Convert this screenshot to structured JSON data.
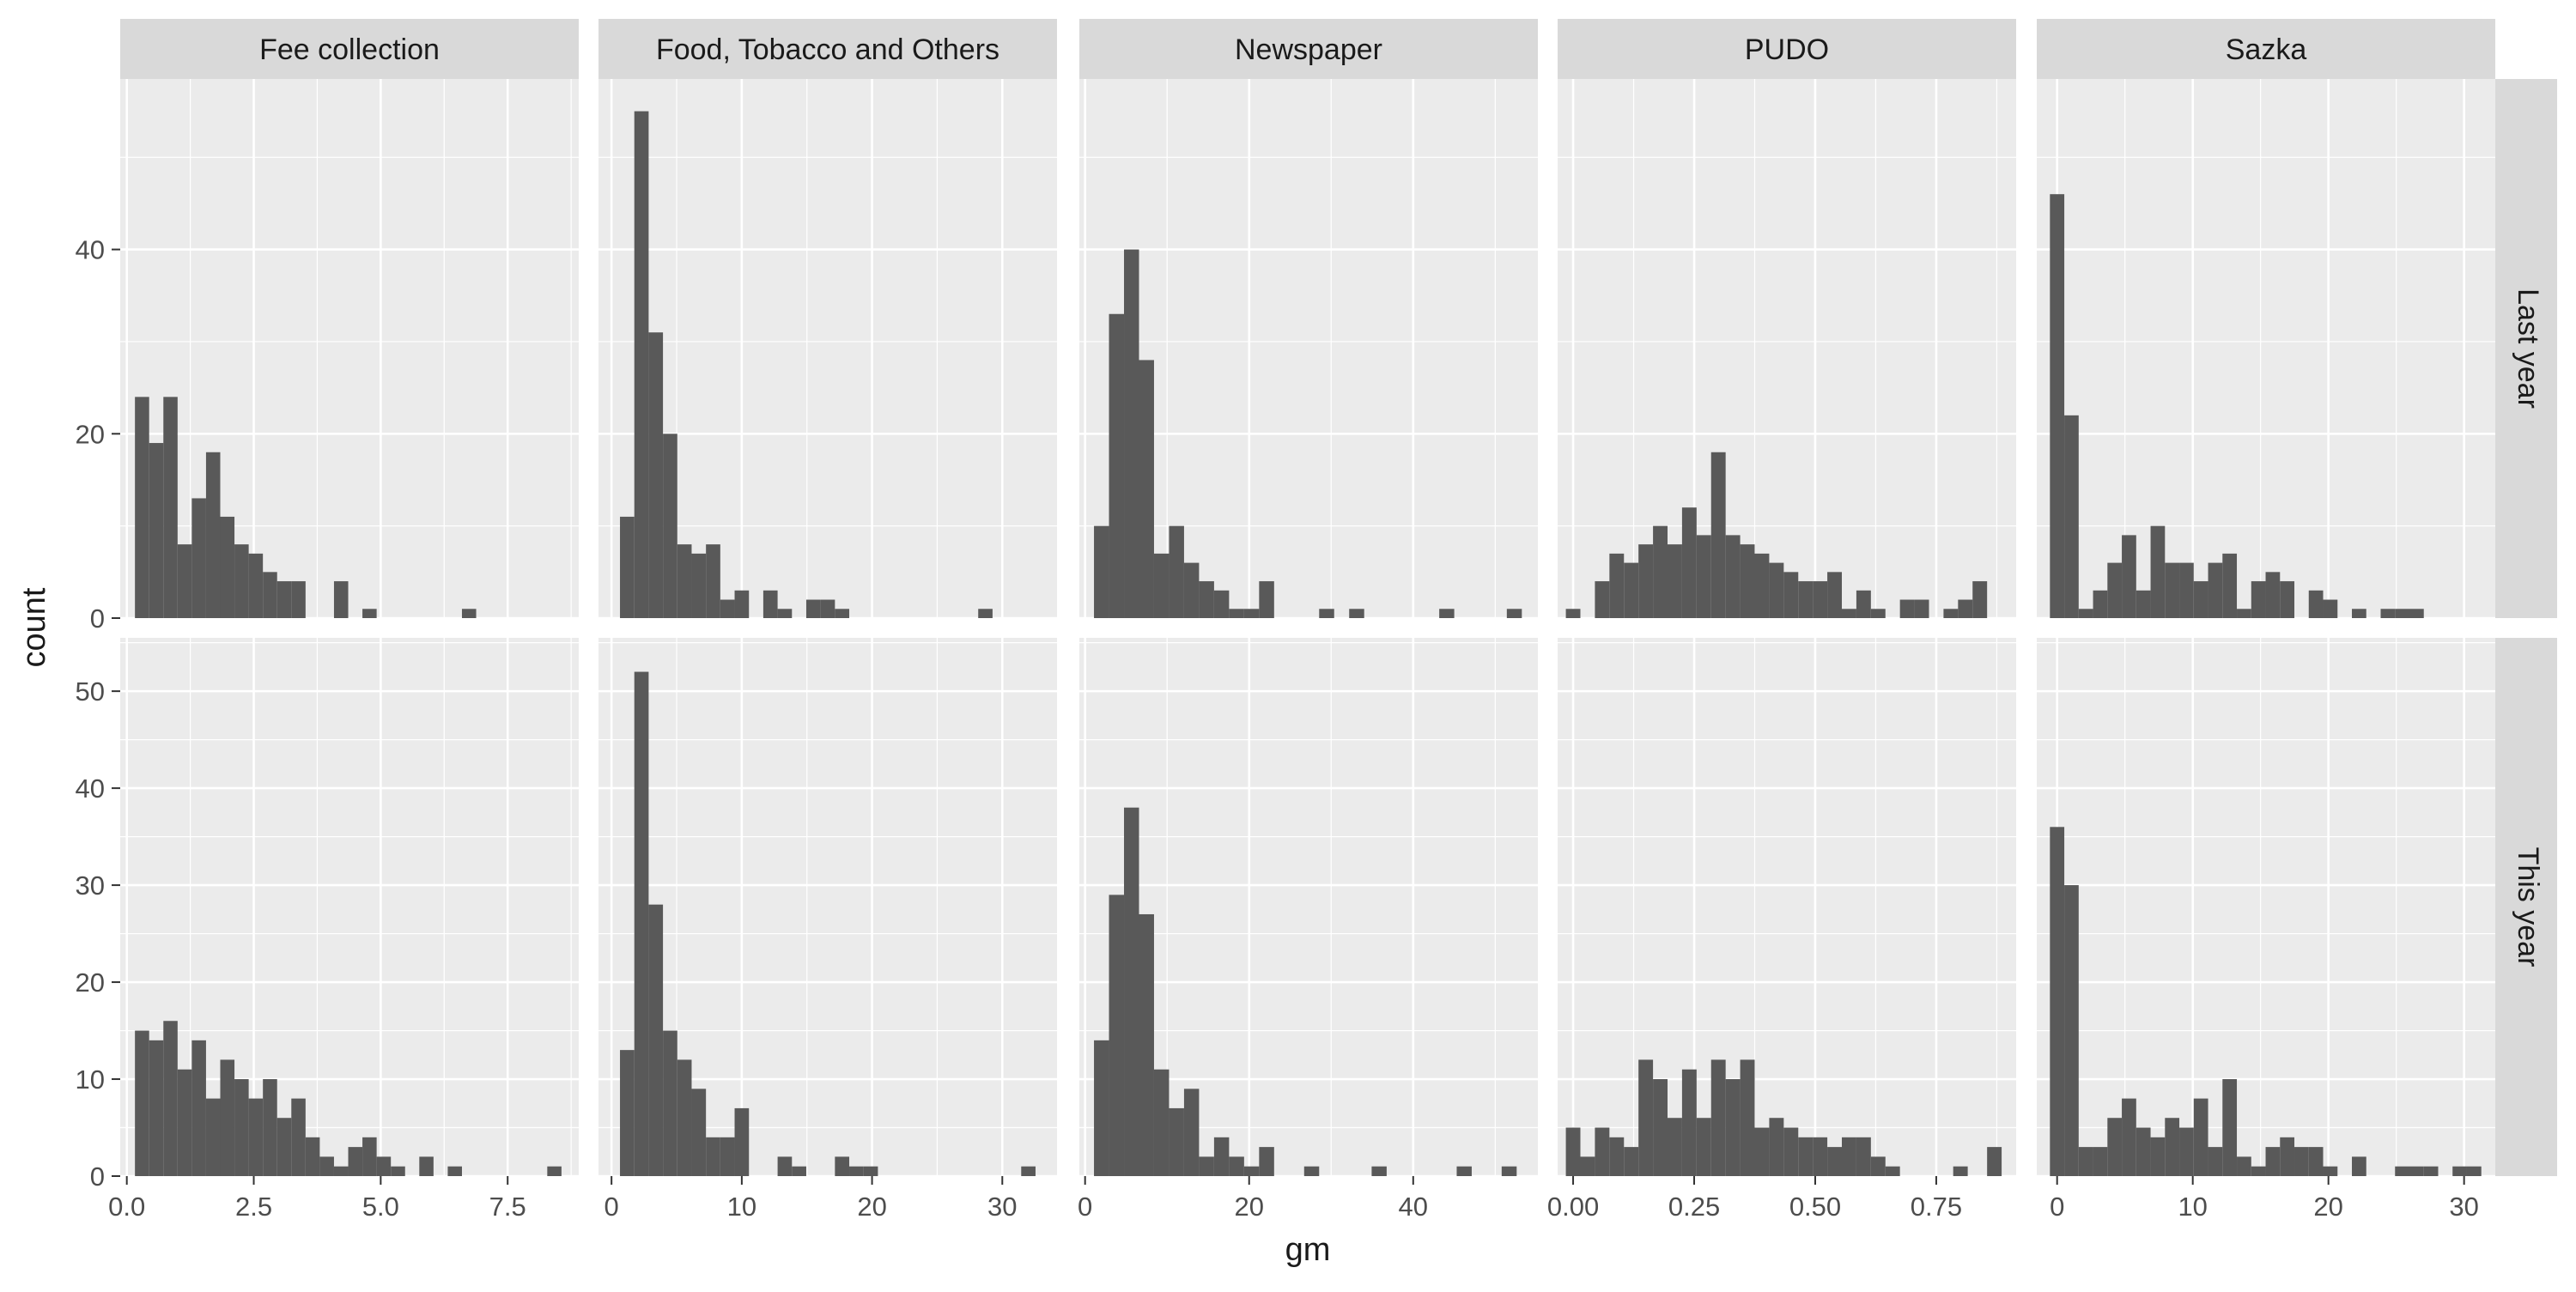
{
  "chart_data": {
    "type": "histogram",
    "facet_columns": [
      "Fee collection",
      "Food, Tobacco and Others",
      "Newspaper",
      "PUDO",
      "Sazka"
    ],
    "facet_rows": [
      "Last year",
      "This year"
    ],
    "xlabel": "gm",
    "ylabel": "count",
    "colors": {
      "panel_bg": "#EBEBEB",
      "grid": "#FFFFFF",
      "bar": "#595959",
      "strip_bg": "#D9D9D9",
      "text": "#1A1A1A",
      "tick_text": "#4D4D4D"
    },
    "row_ylim": [
      [
        0,
        58.5
      ],
      [
        0,
        55.5
      ]
    ],
    "row_yticks": [
      [
        0,
        20,
        40
      ],
      [
        0,
        10,
        20,
        30,
        40,
        50
      ]
    ],
    "columns": [
      {
        "name": "Fee collection",
        "xlim": [
          -0.13,
          8.9
        ],
        "xticks": [
          0,
          2.5,
          5,
          7.5
        ],
        "xtick_labels": [
          "0.0",
          "2.5",
          "5.0",
          "7.5"
        ],
        "binwidth": 0.28,
        "rows": [
          {
            "bins": [
              [
                0.3,
                24
              ],
              [
                0.58,
                19
              ],
              [
                0.86,
                24
              ],
              [
                1.14,
                8
              ],
              [
                1.42,
                13
              ],
              [
                1.7,
                18
              ],
              [
                1.98,
                11
              ],
              [
                2.26,
                8
              ],
              [
                2.54,
                7
              ],
              [
                2.82,
                5
              ],
              [
                3.1,
                4
              ],
              [
                3.38,
                4
              ],
              [
                4.22,
                4
              ],
              [
                4.78,
                1
              ],
              [
                6.74,
                1
              ]
            ]
          },
          {
            "bins": [
              [
                0.3,
                15
              ],
              [
                0.58,
                14
              ],
              [
                0.86,
                16
              ],
              [
                1.14,
                11
              ],
              [
                1.42,
                14
              ],
              [
                1.7,
                8
              ],
              [
                1.98,
                12
              ],
              [
                2.26,
                10
              ],
              [
                2.54,
                8
              ],
              [
                2.82,
                10
              ],
              [
                3.1,
                6
              ],
              [
                3.38,
                8
              ],
              [
                3.66,
                4
              ],
              [
                3.94,
                2
              ],
              [
                4.22,
                1
              ],
              [
                4.5,
                3
              ],
              [
                4.78,
                4
              ],
              [
                5.06,
                2
              ],
              [
                5.34,
                1
              ],
              [
                5.9,
                2
              ],
              [
                6.46,
                1
              ],
              [
                8.42,
                1
              ]
            ]
          }
        ]
      },
      {
        "name": "Food, Tobacco and Others",
        "xlim": [
          -1.0,
          34.2
        ],
        "xticks": [
          0,
          10,
          20,
          30
        ],
        "xtick_labels": [
          "0",
          "10",
          "20",
          "30"
        ],
        "binwidth": 1.1,
        "rows": [
          {
            "bins": [
              [
                1.2,
                11
              ],
              [
                2.3,
                55
              ],
              [
                3.4,
                31
              ],
              [
                4.5,
                20
              ],
              [
                5.6,
                8
              ],
              [
                6.7,
                7
              ],
              [
                7.8,
                8
              ],
              [
                8.9,
                2
              ],
              [
                10.0,
                3
              ],
              [
                12.2,
                3
              ],
              [
                13.3,
                1
              ],
              [
                15.5,
                2
              ],
              [
                16.6,
                2
              ],
              [
                17.7,
                1
              ],
              [
                28.7,
                1
              ]
            ]
          },
          {
            "bins": [
              [
                1.2,
                13
              ],
              [
                2.3,
                52
              ],
              [
                3.4,
                28
              ],
              [
                4.5,
                15
              ],
              [
                5.6,
                12
              ],
              [
                6.7,
                9
              ],
              [
                7.8,
                4
              ],
              [
                8.9,
                4
              ],
              [
                10.0,
                7
              ],
              [
                13.3,
                2
              ],
              [
                14.4,
                1
              ],
              [
                17.7,
                2
              ],
              [
                18.8,
                1
              ],
              [
                19.9,
                1
              ],
              [
                32.0,
                1
              ]
            ]
          }
        ]
      },
      {
        "name": "Newspaper",
        "xlim": [
          -0.7,
          55.2
        ],
        "xticks": [
          0,
          20,
          40
        ],
        "xtick_labels": [
          "0",
          "20",
          "40"
        ],
        "binwidth": 1.83,
        "rows": [
          {
            "bins": [
              [
                2.0,
                10
              ],
              [
                3.83,
                33
              ],
              [
                5.66,
                40
              ],
              [
                7.49,
                28
              ],
              [
                9.32,
                7
              ],
              [
                11.15,
                10
              ],
              [
                12.98,
                6
              ],
              [
                14.81,
                4
              ],
              [
                16.64,
                3
              ],
              [
                18.47,
                1
              ],
              [
                20.3,
                1
              ],
              [
                22.13,
                4
              ],
              [
                29.45,
                1
              ],
              [
                33.11,
                1
              ],
              [
                44.09,
                1
              ],
              [
                52.33,
                1
              ]
            ]
          },
          {
            "bins": [
              [
                2.0,
                14
              ],
              [
                3.83,
                29
              ],
              [
                5.66,
                38
              ],
              [
                7.49,
                27
              ],
              [
                9.32,
                11
              ],
              [
                11.15,
                7
              ],
              [
                12.98,
                9
              ],
              [
                14.81,
                2
              ],
              [
                16.64,
                4
              ],
              [
                18.47,
                2
              ],
              [
                20.3,
                1
              ],
              [
                22.13,
                3
              ],
              [
                27.62,
                1
              ],
              [
                35.85,
                1
              ],
              [
                46.22,
                1
              ],
              [
                51.7,
                1
              ]
            ]
          }
        ]
      },
      {
        "name": "PUDO",
        "xlim": [
          -0.032,
          0.915
        ],
        "xticks": [
          0,
          0.25,
          0.5,
          0.75
        ],
        "xtick_labels": [
          "0.00",
          "0.25",
          "0.50",
          "0.75"
        ],
        "binwidth": 0.03,
        "rows": [
          {
            "bins": [
              [
                0.0,
                1
              ],
              [
                0.06,
                4
              ],
              [
                0.09,
                7
              ],
              [
                0.12,
                6
              ],
              [
                0.15,
                8
              ],
              [
                0.18,
                10
              ],
              [
                0.21,
                8
              ],
              [
                0.24,
                12
              ],
              [
                0.27,
                9
              ],
              [
                0.3,
                18
              ],
              [
                0.33,
                9
              ],
              [
                0.36,
                8
              ],
              [
                0.39,
                7
              ],
              [
                0.42,
                6
              ],
              [
                0.45,
                5
              ],
              [
                0.48,
                4
              ],
              [
                0.51,
                4
              ],
              [
                0.54,
                5
              ],
              [
                0.57,
                1
              ],
              [
                0.6,
                3
              ],
              [
                0.63,
                1
              ],
              [
                0.69,
                2
              ],
              [
                0.72,
                2
              ],
              [
                0.78,
                1
              ],
              [
                0.81,
                2
              ],
              [
                0.84,
                4
              ]
            ]
          },
          {
            "bins": [
              [
                0.0,
                5
              ],
              [
                0.03,
                2
              ],
              [
                0.06,
                5
              ],
              [
                0.09,
                4
              ],
              [
                0.12,
                3
              ],
              [
                0.15,
                12
              ],
              [
                0.18,
                10
              ],
              [
                0.21,
                6
              ],
              [
                0.24,
                11
              ],
              [
                0.27,
                6
              ],
              [
                0.3,
                12
              ],
              [
                0.33,
                10
              ],
              [
                0.36,
                12
              ],
              [
                0.39,
                5
              ],
              [
                0.42,
                6
              ],
              [
                0.45,
                5
              ],
              [
                0.48,
                4
              ],
              [
                0.51,
                4
              ],
              [
                0.54,
                3
              ],
              [
                0.57,
                4
              ],
              [
                0.6,
                4
              ],
              [
                0.63,
                2
              ],
              [
                0.66,
                1
              ],
              [
                0.8,
                1
              ],
              [
                0.87,
                3
              ]
            ]
          }
        ]
      },
      {
        "name": "Sazka",
        "xlim": [
          -1.5,
          32.3
        ],
        "xticks": [
          0,
          10,
          20,
          30
        ],
        "xtick_labels": [
          "0",
          "10",
          "20",
          "30"
        ],
        "binwidth": 1.06,
        "rows": [
          {
            "bins": [
              [
                0.0,
                46
              ],
              [
                1.06,
                22
              ],
              [
                2.12,
                1
              ],
              [
                3.18,
                3
              ],
              [
                4.24,
                6
              ],
              [
                5.3,
                9
              ],
              [
                6.36,
                3
              ],
              [
                7.42,
                10
              ],
              [
                8.48,
                6
              ],
              [
                9.54,
                6
              ],
              [
                10.6,
                4
              ],
              [
                11.66,
                6
              ],
              [
                12.72,
                7
              ],
              [
                13.78,
                1
              ],
              [
                14.84,
                4
              ],
              [
                15.9,
                5
              ],
              [
                16.96,
                4
              ],
              [
                19.08,
                3
              ],
              [
                20.14,
                2
              ],
              [
                22.26,
                1
              ],
              [
                24.38,
                1
              ],
              [
                25.44,
                1
              ],
              [
                26.5,
                1
              ]
            ]
          },
          {
            "bins": [
              [
                0.0,
                36
              ],
              [
                1.06,
                30
              ],
              [
                2.12,
                3
              ],
              [
                3.18,
                3
              ],
              [
                4.24,
                6
              ],
              [
                5.3,
                8
              ],
              [
                6.36,
                5
              ],
              [
                7.42,
                4
              ],
              [
                8.48,
                6
              ],
              [
                9.54,
                5
              ],
              [
                10.6,
                8
              ],
              [
                11.66,
                3
              ],
              [
                12.72,
                10
              ],
              [
                13.78,
                2
              ],
              [
                14.84,
                1
              ],
              [
                15.9,
                3
              ],
              [
                16.96,
                4
              ],
              [
                18.02,
                3
              ],
              [
                19.08,
                3
              ],
              [
                20.14,
                1
              ],
              [
                22.26,
                2
              ],
              [
                25.44,
                1
              ],
              [
                26.5,
                1
              ],
              [
                27.56,
                1
              ],
              [
                29.68,
                1
              ],
              [
                30.74,
                1
              ]
            ]
          }
        ]
      }
    ]
  }
}
